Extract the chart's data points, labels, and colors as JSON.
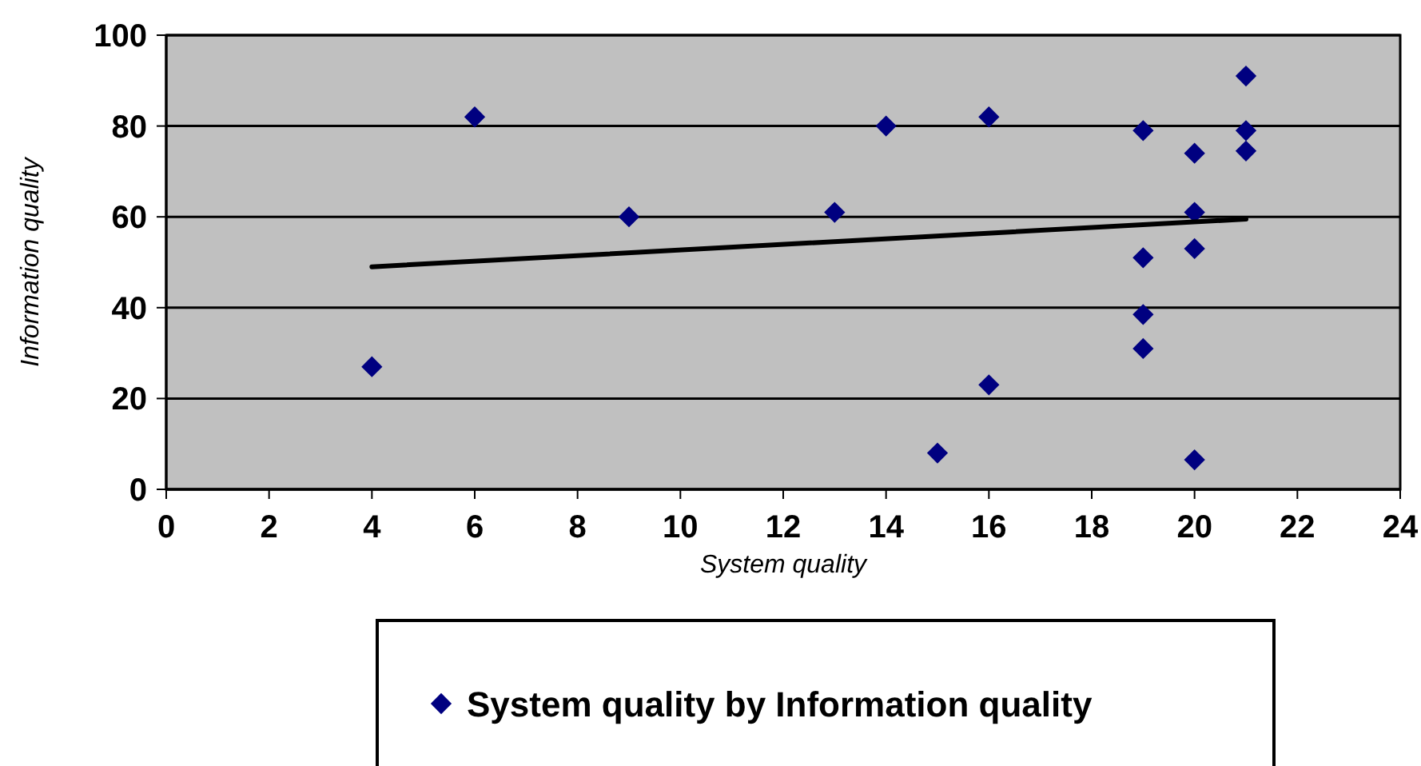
{
  "chart_data": {
    "type": "scatter",
    "xlabel": "System quality",
    "ylabel": "Information quality",
    "xlim": [
      0,
      24
    ],
    "xticks": [
      0,
      2,
      4,
      6,
      8,
      10,
      12,
      14,
      16,
      18,
      20,
      22,
      24
    ],
    "ylim": [
      0,
      100
    ],
    "yticks": [
      0,
      20,
      40,
      60,
      80,
      100
    ],
    "grid": "y",
    "legend": "bottom",
    "marker": "diamond",
    "series": [
      {
        "name": "System quality by Information quality",
        "color": "#000080",
        "x": [
          4,
          6,
          9,
          13,
          14,
          15,
          16,
          16,
          19,
          19,
          19,
          19,
          20,
          20,
          20,
          20,
          21,
          21,
          21
        ],
        "values": [
          27,
          82,
          60,
          61,
          80,
          8,
          82,
          23,
          79,
          51,
          38.5,
          31,
          74,
          61,
          53,
          6.5,
          91,
          79,
          74.5
        ]
      },
      {
        "type": "line",
        "marker": "none",
        "color": "#000000",
        "x": [
          4,
          21
        ],
        "values": [
          49,
          59.5
        ]
      }
    ]
  }
}
